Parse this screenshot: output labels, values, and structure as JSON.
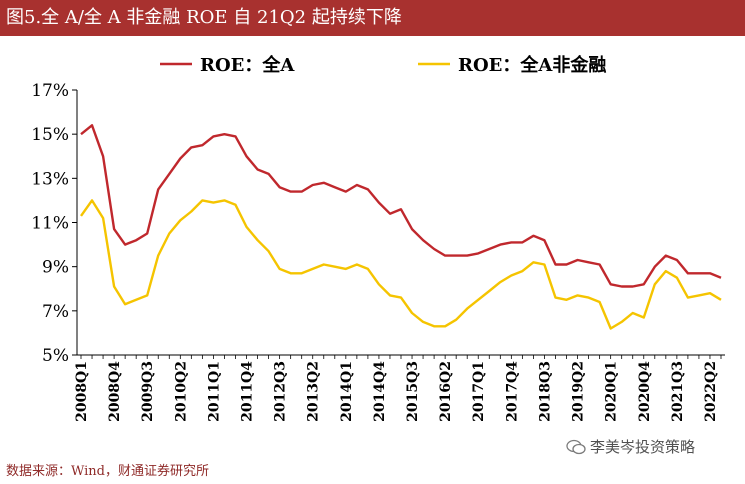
{
  "header": {
    "title": "图5.全 A/全 A 非金融 ROE 自 21Q2 起持续下降"
  },
  "footer": {
    "source": "数据来源：Wind，财通证券研究所",
    "watermark": "李美岑投资策略"
  },
  "chart_data": {
    "type": "line",
    "title": "全 A/全 A 非金融 ROE 自 21Q2 起持续下降",
    "xlabel": "",
    "ylabel": "",
    "ylim": [
      5,
      17
    ],
    "yticks": [
      5,
      7,
      9,
      11,
      13,
      15,
      17
    ],
    "ytick_labels": [
      "5%",
      "7%",
      "9%",
      "11%",
      "13%",
      "15%",
      "17%"
    ],
    "grid": false,
    "legend": "top-center",
    "x": [
      "2008Q1",
      "2008Q2",
      "2008Q3",
      "2008Q4",
      "2009Q1",
      "2009Q2",
      "2009Q3",
      "2009Q4",
      "2010Q1",
      "2010Q2",
      "2010Q3",
      "2010Q4",
      "2011Q1",
      "2011Q2",
      "2011Q3",
      "2011Q4",
      "2012Q1",
      "2012Q2",
      "2012Q3",
      "2012Q4",
      "2013Q1",
      "2013Q2",
      "2013Q3",
      "2013Q4",
      "2014Q1",
      "2014Q2",
      "2014Q3",
      "2014Q4",
      "2015Q1",
      "2015Q2",
      "2015Q3",
      "2015Q4",
      "2016Q1",
      "2016Q2",
      "2016Q3",
      "2016Q4",
      "2017Q1",
      "2017Q2",
      "2017Q3",
      "2017Q4",
      "2018Q1",
      "2018Q2",
      "2018Q3",
      "2018Q4",
      "2019Q1",
      "2019Q2",
      "2019Q3",
      "2019Q4",
      "2020Q1",
      "2020Q2",
      "2020Q3",
      "2020Q4",
      "2021Q1",
      "2021Q2",
      "2021Q3",
      "2021Q4",
      "2022Q1",
      "2022Q2",
      "2022Q3"
    ],
    "tick_labels": [
      "2008Q1",
      "2008Q4",
      "2009Q3",
      "2010Q2",
      "2011Q1",
      "2011Q4",
      "2012Q3",
      "2013Q2",
      "2014Q1",
      "2014Q4",
      "2015Q3",
      "2016Q2",
      "2017Q1",
      "2017Q4",
      "2018Q3",
      "2019Q2",
      "2020Q1",
      "2020Q4",
      "2021Q3",
      "2022Q2"
    ],
    "series": [
      {
        "name": "ROE：全A",
        "color": "#c0282d",
        "values": [
          15.0,
          15.4,
          14.0,
          10.7,
          10.0,
          10.2,
          10.5,
          12.5,
          13.2,
          13.9,
          14.4,
          14.5,
          14.9,
          15.0,
          14.9,
          14.0,
          13.4,
          13.2,
          12.6,
          12.4,
          12.4,
          12.7,
          12.8,
          12.6,
          12.4,
          12.7,
          12.5,
          11.9,
          11.4,
          11.6,
          10.7,
          10.2,
          9.8,
          9.5,
          9.5,
          9.5,
          9.6,
          9.8,
          10.0,
          10.1,
          10.1,
          10.4,
          10.2,
          9.1,
          9.1,
          9.3,
          9.2,
          9.1,
          8.2,
          8.1,
          8.1,
          8.2,
          9.0,
          9.5,
          9.3,
          8.7,
          8.7,
          8.7,
          8.5
        ]
      },
      {
        "name": "ROE：全A非金融",
        "color": "#f5c400",
        "values": [
          11.3,
          12.0,
          11.2,
          8.1,
          7.3,
          7.5,
          7.7,
          9.5,
          10.5,
          11.1,
          11.5,
          12.0,
          11.9,
          12.0,
          11.8,
          10.8,
          10.2,
          9.7,
          8.9,
          8.7,
          8.7,
          8.9,
          9.1,
          9.0,
          8.9,
          9.1,
          8.9,
          8.2,
          7.7,
          7.6,
          6.9,
          6.5,
          6.3,
          6.3,
          6.6,
          7.1,
          7.5,
          7.9,
          8.3,
          8.6,
          8.8,
          9.2,
          9.1,
          7.6,
          7.5,
          7.7,
          7.6,
          7.4,
          6.2,
          6.5,
          6.9,
          6.7,
          8.2,
          8.8,
          8.5,
          7.6,
          7.7,
          7.8,
          7.5
        ]
      }
    ]
  }
}
